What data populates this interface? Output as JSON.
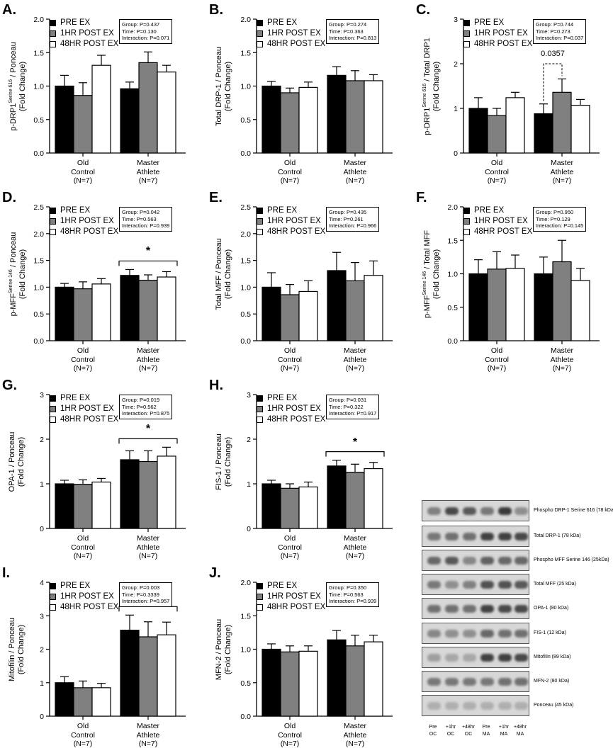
{
  "legend_labels": [
    "PRE EX",
    "1HR POST EX",
    "48HR POST EX"
  ],
  "groups": [
    [
      "Old",
      "Control",
      "(N=7)"
    ],
    [
      "Master",
      "Athlete",
      "(N=7)"
    ]
  ],
  "colors": {
    "pre": "#000000",
    "post1": "#808080",
    "post48": "#ffffff"
  },
  "panels": [
    {
      "id": "A",
      "letter": "A.",
      "ylabel_lines": [
        "p-DRP1 Serine 616 / Ponceau",
        "(Fold Change)"
      ],
      "stats": [
        "Group: P=0.437",
        "Time: P=0.130",
        "Interaction: P=0.071"
      ],
      "ylim": [
        0,
        2.0
      ],
      "ticks": [
        0.0,
        0.5,
        1.0,
        1.5,
        2.0
      ],
      "ticklabels": [
        "0.0",
        "0.5",
        "1.0",
        "1.5",
        "2.0"
      ],
      "values": [
        [
          1.0,
          0.86,
          1.31
        ],
        [
          0.96,
          1.35,
          1.21
        ]
      ],
      "errors": [
        [
          0.16,
          0.19,
          0.15
        ],
        [
          0.1,
          0.16,
          0.1
        ]
      ],
      "significance": null,
      "pvalue": null
    },
    {
      "id": "B",
      "letter": "B.",
      "ylabel_lines": [
        "Total DRP-1 / Ponceau",
        "(Fold Change)"
      ],
      "stats": [
        "Group: P=0.274",
        "Time: P=0.363",
        "Interaction: P=0.813"
      ],
      "ylim": [
        0,
        2.0
      ],
      "ticks": [
        0.0,
        0.5,
        1.0,
        1.5,
        2.0
      ],
      "ticklabels": [
        "0.0",
        "0.5",
        "1.0",
        "1.5",
        "2.0"
      ],
      "values": [
        [
          1.0,
          0.9,
          0.98
        ],
        [
          1.16,
          1.08,
          1.08
        ]
      ],
      "errors": [
        [
          0.07,
          0.07,
          0.08
        ],
        [
          0.13,
          0.15,
          0.09
        ]
      ],
      "significance": null,
      "pvalue": null
    },
    {
      "id": "C",
      "letter": "C.",
      "ylabel_lines": [
        "p-DRP1 Serine 616 / Total DRP1",
        "(Fold Change)"
      ],
      "stats": [
        "Group: P=0.744",
        "Time: P=0.273",
        "Interaction: P=0.037"
      ],
      "ylim": [
        0,
        3
      ],
      "ticks": [
        0,
        1,
        2,
        3
      ],
      "ticklabels": [
        "0",
        "1",
        "2",
        "3"
      ],
      "values": [
        [
          1.0,
          0.84,
          1.24
        ],
        [
          0.88,
          1.36,
          1.07
        ]
      ],
      "errors": [
        [
          0.24,
          0.16,
          0.12
        ],
        [
          0.22,
          0.3,
          0.13
        ]
      ],
      "significance": null,
      "pvalue": "0.0357"
    },
    {
      "id": "D",
      "letter": "D.",
      "ylabel_lines": [
        "p-MFF Serine 146 / Ponceau",
        "(Fold Change)"
      ],
      "stats": [
        "Group: P=0.042",
        "Time: P=0.563",
        "Interaction: P=0.939"
      ],
      "ylim": [
        0,
        2.5
      ],
      "ticks": [
        0.0,
        0.5,
        1.0,
        1.5,
        2.0,
        2.5
      ],
      "ticklabels": [
        "0.0",
        "0.5",
        "1.0",
        "1.5",
        "2.0",
        "2.5"
      ],
      "values": [
        [
          1.0,
          0.97,
          1.06
        ],
        [
          1.22,
          1.13,
          1.19
        ]
      ],
      "errors": [
        [
          0.07,
          0.13,
          0.1
        ],
        [
          0.11,
          0.1,
          0.1
        ]
      ],
      "significance": "*",
      "pvalue": null
    },
    {
      "id": "E",
      "letter": "E.",
      "ylabel_lines": [
        "Total MFF / Ponceau",
        "(Fold Change)"
      ],
      "stats": [
        "Group: P=0.435",
        "Time: P=0.261",
        "Interaction: P=0.966"
      ],
      "ylim": [
        0,
        2.5
      ],
      "ticks": [
        0.0,
        0.5,
        1.0,
        1.5,
        2.0,
        2.5
      ],
      "ticklabels": [
        "0.0",
        "0.5",
        "1.0",
        "1.5",
        "2.0",
        "2.5"
      ],
      "values": [
        [
          1.0,
          0.86,
          0.92
        ],
        [
          1.31,
          1.12,
          1.22
        ]
      ],
      "errors": [
        [
          0.27,
          0.19,
          0.2
        ],
        [
          0.34,
          0.34,
          0.27
        ]
      ],
      "significance": null,
      "pvalue": null
    },
    {
      "id": "F",
      "letter": "F.",
      "ylabel_lines": [
        "p-MFF Serine 146 / Total MFF",
        "(Fold Change)"
      ],
      "stats": [
        "Group: P=0.950",
        "Time: P=0.129",
        "Interaction: P=0.145"
      ],
      "ylim": [
        0,
        2.0
      ],
      "ticks": [
        0.0,
        0.5,
        1.0,
        1.5,
        2.0
      ],
      "ticklabels": [
        "0.0",
        "0.5",
        "1.0",
        "1.5",
        "2.0"
      ],
      "values": [
        [
          1.0,
          1.07,
          1.08
        ],
        [
          1.0,
          1.18,
          0.9
        ]
      ],
      "errors": [
        [
          0.21,
          0.26,
          0.2
        ],
        [
          0.25,
          0.32,
          0.18
        ]
      ],
      "significance": null,
      "pvalue": null
    },
    {
      "id": "G",
      "letter": "G.",
      "ylabel_lines": [
        "OPA-1 / Ponceau",
        "(Fold Change)"
      ],
      "stats": [
        "Group: P=0.019",
        "Time: P=0.562",
        "Interaction: P=0.875"
      ],
      "ylim": [
        0,
        3
      ],
      "ticks": [
        0,
        1,
        2,
        3
      ],
      "ticklabels": [
        "0",
        "1",
        "2",
        "3"
      ],
      "values": [
        [
          1.0,
          0.99,
          1.04
        ],
        [
          1.54,
          1.5,
          1.62
        ]
      ],
      "errors": [
        [
          0.08,
          0.1,
          0.08
        ],
        [
          0.2,
          0.24,
          0.2
        ]
      ],
      "significance": "*",
      "pvalue": null
    },
    {
      "id": "H",
      "letter": "H.",
      "ylabel_lines": [
        "FIS-1 / Ponceau",
        "(Fold Change)"
      ],
      "stats": [
        "Group: P=0.031",
        "Time: P=0.322",
        "Interaction: P=0.917"
      ],
      "ylim": [
        0,
        3
      ],
      "ticks": [
        0,
        1,
        2,
        3
      ],
      "ticklabels": [
        "0",
        "1",
        "2",
        "3"
      ],
      "values": [
        [
          1.0,
          0.9,
          0.93
        ],
        [
          1.4,
          1.26,
          1.34
        ]
      ],
      "errors": [
        [
          0.08,
          0.1,
          0.11
        ],
        [
          0.13,
          0.18,
          0.14
        ]
      ],
      "significance": "*",
      "pvalue": null
    },
    {
      "id": "I",
      "letter": "I.",
      "ylabel_lines": [
        "Mitofilin / Ponceau",
        "(Fold Change)"
      ],
      "stats": [
        "Group: P=0.003",
        "Time: P=0.3339",
        "Interaction: P=0.957"
      ],
      "ylim": [
        0,
        4
      ],
      "ticks": [
        0,
        1,
        2,
        3,
        4
      ],
      "ticklabels": [
        "0",
        "1",
        "2",
        "3",
        "4"
      ],
      "values": [
        [
          1.0,
          0.85,
          0.85
        ],
        [
          2.57,
          2.37,
          2.43
        ]
      ],
      "errors": [
        [
          0.18,
          0.2,
          0.13
        ],
        [
          0.45,
          0.45,
          0.38
        ]
      ],
      "significance": "*",
      "pvalue": null
    },
    {
      "id": "J",
      "letter": "J.",
      "ylabel_lines": [
        "MFN-2 / Ponceau",
        "(Fold Change)"
      ],
      "stats": [
        "Group: P=0.350",
        "Time: P=0.563",
        "Interaction: P=0.939"
      ],
      "ylim": [
        0,
        2.0
      ],
      "ticks": [
        0.0,
        0.5,
        1.0,
        1.5,
        2.0
      ],
      "ticklabels": [
        "0.0",
        "0.5",
        "1.0",
        "1.5",
        "2.0"
      ],
      "values": [
        [
          1.0,
          0.96,
          0.97
        ],
        [
          1.14,
          1.05,
          1.11
        ]
      ],
      "errors": [
        [
          0.08,
          0.09,
          0.08
        ],
        [
          0.14,
          0.16,
          0.1
        ]
      ],
      "significance": null,
      "pvalue": null
    }
  ],
  "blot": {
    "rows": [
      "Phospho DRP-1 Serine 616 (78 kDa)",
      "Total DRP-1 (78 kDa)",
      "Phospho MFF Serine 146 (25kDa)",
      "Total MFF (25 kDa)",
      "OPA-1 (80 kDa)",
      "FIS-1 (12 kDa)",
      "Mitofilin (89 kDa)",
      "MFN-2 (80 kDa)",
      "Ponceau (45 kDa)"
    ],
    "columns": [
      [
        "Pre",
        "OC"
      ],
      [
        "+1hr",
        "OC"
      ],
      [
        "+48hr",
        "OC"
      ],
      [
        "Pre",
        "MA"
      ],
      [
        "+1hr",
        "MA"
      ],
      [
        "+48hr",
        "MA"
      ]
    ]
  }
}
